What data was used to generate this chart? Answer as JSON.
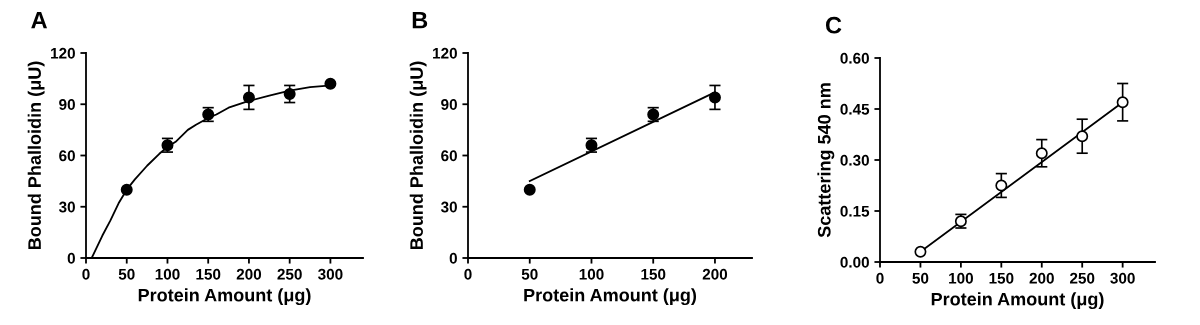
{
  "chart_data": [
    {
      "type": "scatter",
      "title": "A",
      "xlabel": "Protein Amount (μg)",
      "ylabel": "Bound Phalloidin (μU)",
      "xlim": [
        0,
        340
      ],
      "xticks": [
        0,
        50,
        100,
        150,
        200,
        250,
        300
      ],
      "ylim": [
        0,
        120
      ],
      "yticks": [
        0,
        30,
        60,
        90,
        120
      ],
      "grid": false,
      "marker": "circle",
      "series": [
        {
          "color": "#000000",
          "x": [
            50,
            100,
            150,
            200,
            250,
            300
          ],
          "values": [
            40,
            66,
            84,
            94,
            96,
            102
          ],
          "errors": [
            null,
            4,
            4,
            7,
            5,
            null
          ]
        },
        {
          "type": "line",
          "color": "#000000",
          "marker": "none",
          "x": [
            7,
            20,
            30,
            40,
            50,
            60,
            75,
            90,
            100,
            110,
            125,
            135,
            150,
            160,
            175,
            200,
            225,
            250,
            275,
            300
          ],
          "values": [
            0,
            13,
            22,
            32,
            40,
            46,
            54,
            61,
            65,
            68,
            75,
            78,
            82,
            84,
            88,
            92,
            95,
            98,
            100,
            101
          ]
        }
      ]
    },
    {
      "type": "scatter",
      "title": "B",
      "xlabel": "Protein Amount (μg)",
      "ylabel": "Bound Phalloidin (μU)",
      "xlim": [
        0,
        230
      ],
      "xticks": [
        0,
        50,
        100,
        150,
        200
      ],
      "ylim": [
        0,
        120
      ],
      "yticks": [
        0,
        30,
        60,
        90,
        120
      ],
      "grid": false,
      "marker": "circle",
      "series": [
        {
          "color": "#000000",
          "x": [
            50,
            100,
            150,
            200
          ],
          "values": [
            40,
            66,
            84,
            94
          ],
          "errors": [
            null,
            4,
            4,
            7
          ]
        },
        {
          "type": "line",
          "color": "#000000",
          "marker": "none",
          "x": [
            50,
            200
          ],
          "values": [
            45,
            97
          ]
        }
      ]
    },
    {
      "type": "scatter",
      "title": "C",
      "xlabel": "Protein Amount (μg)",
      "ylabel": "Scattering 540 nm",
      "xlim": [
        0,
        340
      ],
      "xticks": [
        0,
        50,
        100,
        150,
        200,
        250,
        300
      ],
      "ylim": [
        0,
        0.6
      ],
      "yticks": [
        {
          "value": 0,
          "label": "0.00"
        },
        {
          "value": 0.15,
          "label": "0.15"
        },
        {
          "value": 0.3,
          "label": "0.30"
        },
        {
          "value": 0.45,
          "label": "0.45"
        },
        {
          "value": 0.6,
          "label": "0.60"
        }
      ],
      "grid": false,
      "marker": "circle",
      "series": [
        {
          "color": "#ffffff",
          "x": [
            50,
            100,
            150,
            200,
            250,
            300
          ],
          "values": [
            0.03,
            0.12,
            0.225,
            0.32,
            0.37,
            0.47
          ],
          "errors": [
            null,
            0.02,
            0.035,
            0.04,
            0.05,
            0.055
          ]
        },
        {
          "type": "line",
          "color": "#000000",
          "marker": "none",
          "x": [
            50,
            300
          ],
          "values": [
            0.03,
            0.47
          ]
        }
      ]
    }
  ]
}
